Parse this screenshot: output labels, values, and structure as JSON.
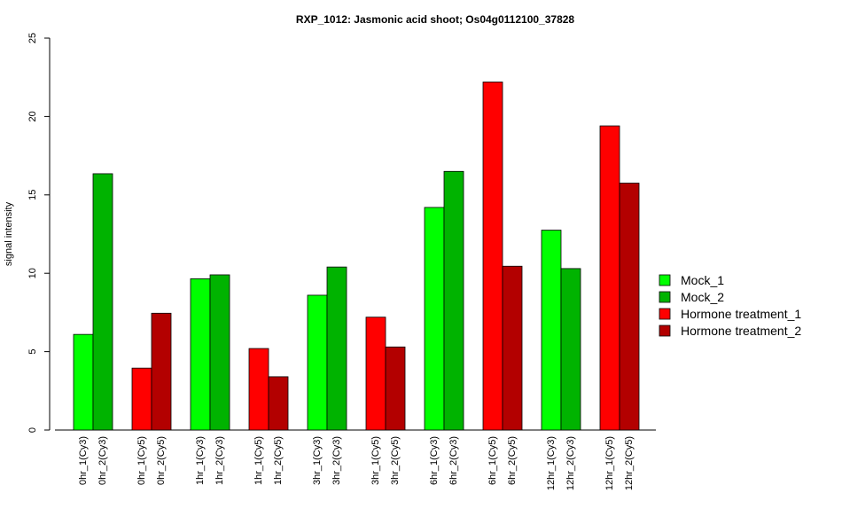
{
  "chart_data": {
    "type": "bar",
    "title": "RXP_1012: Jasmonic acid shoot; Os04g0112100_37828",
    "xlabel": "",
    "ylabel": "signal intensity",
    "ylim": [
      0,
      25
    ],
    "yticks": [
      "0",
      "5",
      "10",
      "15",
      "20",
      "25"
    ],
    "grid": false,
    "legend_position": "right",
    "legend": [
      {
        "label": "Mock_1",
        "color": "#00ff00"
      },
      {
        "label": "Mock_2",
        "color": "#00b300"
      },
      {
        "label": "Hormone treatment_1",
        "color": "#ff0000"
      },
      {
        "label": "Hormone treatment_2",
        "color": "#b30000"
      }
    ],
    "bars": [
      {
        "label": "0hr_1(Cy3)",
        "value": 6.1,
        "color": "#00ff00"
      },
      {
        "label": "0hr_2(Cy3)",
        "value": 16.35,
        "color": "#00b300"
      },
      {
        "label": "0hr_1(Cy5)",
        "value": 3.95,
        "color": "#ff0000"
      },
      {
        "label": "0hr_2(Cy5)",
        "value": 7.45,
        "color": "#b30000"
      },
      {
        "label": "1hr_1(Cy3)",
        "value": 9.65,
        "color": "#00ff00"
      },
      {
        "label": "1hr_2(Cy3)",
        "value": 9.9,
        "color": "#00b300"
      },
      {
        "label": "1hr_1(Cy5)",
        "value": 5.2,
        "color": "#ff0000"
      },
      {
        "label": "1hr_2(Cy5)",
        "value": 3.4,
        "color": "#b30000"
      },
      {
        "label": "3hr_1(Cy3)",
        "value": 8.6,
        "color": "#00ff00"
      },
      {
        "label": "3hr_2(Cy3)",
        "value": 10.4,
        "color": "#00b300"
      },
      {
        "label": "3hr_1(Cy5)",
        "value": 7.2,
        "color": "#ff0000"
      },
      {
        "label": "3hr_2(Cy5)",
        "value": 5.3,
        "color": "#b30000"
      },
      {
        "label": "6hr_1(Cy3)",
        "value": 14.2,
        "color": "#00ff00"
      },
      {
        "label": "6hr_2(Cy3)",
        "value": 16.5,
        "color": "#00b300"
      },
      {
        "label": "6hr_1(Cy5)",
        "value": 22.2,
        "color": "#ff0000"
      },
      {
        "label": "6hr_2(Cy5)",
        "value": 10.45,
        "color": "#b30000"
      },
      {
        "label": "12hr_1(Cy3)",
        "value": 12.75,
        "color": "#00ff00"
      },
      {
        "label": "12hr_2(Cy3)",
        "value": 10.3,
        "color": "#00b300"
      },
      {
        "label": "12hr_1(Cy5)",
        "value": 19.4,
        "color": "#ff0000"
      },
      {
        "label": "12hr_2(Cy5)",
        "value": 15.75,
        "color": "#b30000"
      }
    ]
  }
}
